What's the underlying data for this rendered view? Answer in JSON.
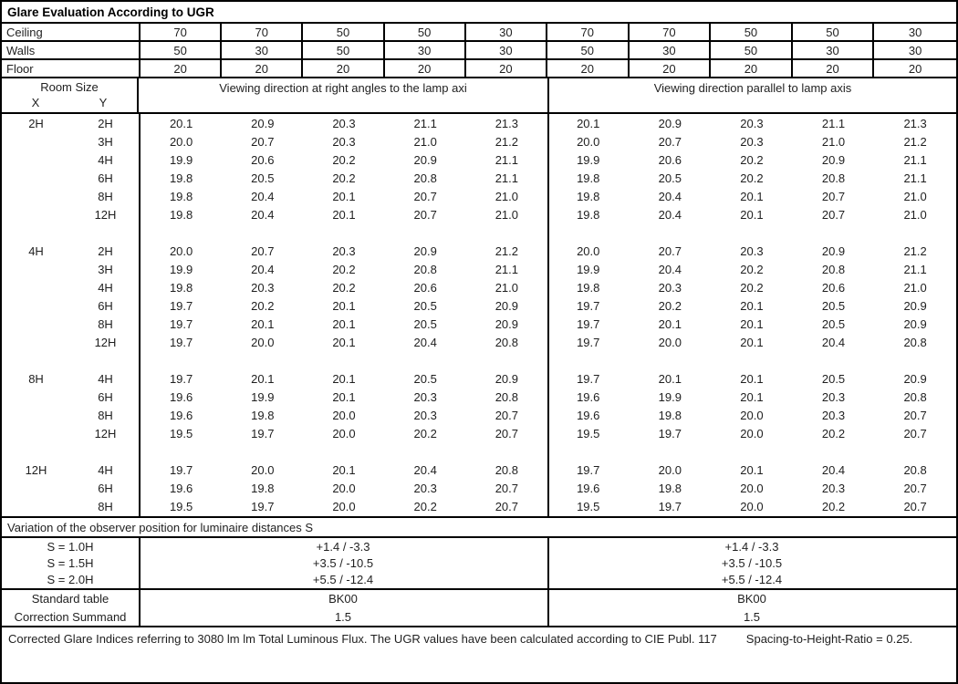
{
  "title": "Glare Evaluation According to UGR",
  "surface_rows": [
    {
      "label": "Ceiling",
      "values": [
        "70",
        "70",
        "50",
        "50",
        "30",
        "70",
        "70",
        "50",
        "50",
        "30"
      ]
    },
    {
      "label": "Walls",
      "values": [
        "50",
        "30",
        "50",
        "30",
        "30",
        "50",
        "30",
        "50",
        "30",
        "30"
      ]
    },
    {
      "label": "Floor",
      "values": [
        "20",
        "20",
        "20",
        "20",
        "20",
        "20",
        "20",
        "20",
        "20",
        "20"
      ]
    }
  ],
  "header": {
    "room_size_label": "Room Size",
    "x_label": "X",
    "y_label": "Y",
    "left_title": "Viewing direction at right angles to the lamp axi",
    "right_title": "Viewing direction parallel to lamp axis"
  },
  "ugr_blocks": [
    {
      "x": "2H",
      "rows": [
        {
          "y": "2H",
          "left": [
            "20.1",
            "20.9",
            "20.3",
            "21.1",
            "21.3"
          ],
          "right": [
            "20.1",
            "20.9",
            "20.3",
            "21.1",
            "21.3"
          ]
        },
        {
          "y": "3H",
          "left": [
            "20.0",
            "20.7",
            "20.3",
            "21.0",
            "21.2"
          ],
          "right": [
            "20.0",
            "20.7",
            "20.3",
            "21.0",
            "21.2"
          ]
        },
        {
          "y": "4H",
          "left": [
            "19.9",
            "20.6",
            "20.2",
            "20.9",
            "21.1"
          ],
          "right": [
            "19.9",
            "20.6",
            "20.2",
            "20.9",
            "21.1"
          ]
        },
        {
          "y": "6H",
          "left": [
            "19.8",
            "20.5",
            "20.2",
            "20.8",
            "21.1"
          ],
          "right": [
            "19.8",
            "20.5",
            "20.2",
            "20.8",
            "21.1"
          ]
        },
        {
          "y": "8H",
          "left": [
            "19.8",
            "20.4",
            "20.1",
            "20.7",
            "21.0"
          ],
          "right": [
            "19.8",
            "20.4",
            "20.1",
            "20.7",
            "21.0"
          ]
        },
        {
          "y": "12H",
          "left": [
            "19.8",
            "20.4",
            "20.1",
            "20.7",
            "21.0"
          ],
          "right": [
            "19.8",
            "20.4",
            "20.1",
            "20.7",
            "21.0"
          ]
        }
      ]
    },
    {
      "x": "4H",
      "rows": [
        {
          "y": "2H",
          "left": [
            "20.0",
            "20.7",
            "20.3",
            "20.9",
            "21.2"
          ],
          "right": [
            "20.0",
            "20.7",
            "20.3",
            "20.9",
            "21.2"
          ]
        },
        {
          "y": "3H",
          "left": [
            "19.9",
            "20.4",
            "20.2",
            "20.8",
            "21.1"
          ],
          "right": [
            "19.9",
            "20.4",
            "20.2",
            "20.8",
            "21.1"
          ]
        },
        {
          "y": "4H",
          "left": [
            "19.8",
            "20.3",
            "20.2",
            "20.6",
            "21.0"
          ],
          "right": [
            "19.8",
            "20.3",
            "20.2",
            "20.6",
            "21.0"
          ]
        },
        {
          "y": "6H",
          "left": [
            "19.7",
            "20.2",
            "20.1",
            "20.5",
            "20.9"
          ],
          "right": [
            "19.7",
            "20.2",
            "20.1",
            "20.5",
            "20.9"
          ]
        },
        {
          "y": "8H",
          "left": [
            "19.7",
            "20.1",
            "20.1",
            "20.5",
            "20.9"
          ],
          "right": [
            "19.7",
            "20.1",
            "20.1",
            "20.5",
            "20.9"
          ]
        },
        {
          "y": "12H",
          "left": [
            "19.7",
            "20.0",
            "20.1",
            "20.4",
            "20.8"
          ],
          "right": [
            "19.7",
            "20.0",
            "20.1",
            "20.4",
            "20.8"
          ]
        }
      ]
    },
    {
      "x": "8H",
      "rows": [
        {
          "y": "4H",
          "left": [
            "19.7",
            "20.1",
            "20.1",
            "20.5",
            "20.9"
          ],
          "right": [
            "19.7",
            "20.1",
            "20.1",
            "20.5",
            "20.9"
          ]
        },
        {
          "y": "6H",
          "left": [
            "19.6",
            "19.9",
            "20.1",
            "20.3",
            "20.8"
          ],
          "right": [
            "19.6",
            "19.9",
            "20.1",
            "20.3",
            "20.8"
          ]
        },
        {
          "y": "8H",
          "left": [
            "19.6",
            "19.8",
            "20.0",
            "20.3",
            "20.7"
          ],
          "right": [
            "19.6",
            "19.8",
            "20.0",
            "20.3",
            "20.7"
          ]
        },
        {
          "y": "12H",
          "left": [
            "19.5",
            "19.7",
            "20.0",
            "20.2",
            "20.7"
          ],
          "right": [
            "19.5",
            "19.7",
            "20.0",
            "20.2",
            "20.7"
          ]
        }
      ]
    },
    {
      "x": "12H",
      "rows": [
        {
          "y": "4H",
          "left": [
            "19.7",
            "20.0",
            "20.1",
            "20.4",
            "20.8"
          ],
          "right": [
            "19.7",
            "20.0",
            "20.1",
            "20.4",
            "20.8"
          ]
        },
        {
          "y": "6H",
          "left": [
            "19.6",
            "19.8",
            "20.0",
            "20.3",
            "20.7"
          ],
          "right": [
            "19.6",
            "19.8",
            "20.0",
            "20.3",
            "20.7"
          ]
        },
        {
          "y": "8H",
          "left": [
            "19.5",
            "19.7",
            "20.0",
            "20.2",
            "20.7"
          ],
          "right": [
            "19.5",
            "19.7",
            "20.0",
            "20.2",
            "20.7"
          ]
        }
      ]
    }
  ],
  "variation": {
    "label": "Variation of the observer position for luminaire distances S",
    "rows": [
      {
        "label": "S = 1.0H",
        "left": "+1.4 / -3.3",
        "right": "+1.4 / -3.3"
      },
      {
        "label": "S = 1.5H",
        "left": "+3.5 / -10.5",
        "right": "+3.5 / -10.5"
      },
      {
        "label": "S = 2.0H",
        "left": "+5.5 / -12.4",
        "right": "+5.5 / -12.4"
      }
    ]
  },
  "summary_rows": [
    {
      "label": "Standard table",
      "left": "BK00",
      "right": "BK00"
    },
    {
      "label": "Correction Summand",
      "left": "1.5",
      "right": "1.5"
    }
  ],
  "footer": {
    "part1": "Corrected Glare Indices referring to 3080 lm lm Total Luminous Flux. The UGR values have been calculated according to CIE Publ. 117",
    "part2": "Spacing-to-Height-Ratio = 0.25."
  },
  "colors": {
    "border": "#000000",
    "text": "#1f1f1f",
    "background": "#ffffff"
  }
}
